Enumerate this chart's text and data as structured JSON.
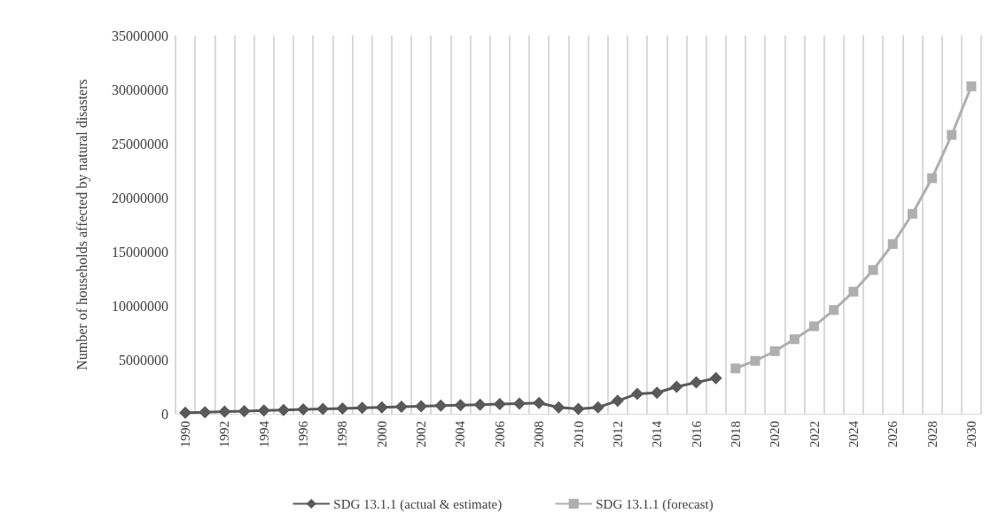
{
  "chart_data": {
    "type": "line",
    "ylabel": "Number of households affected by natural disasters",
    "categories": [
      "1990",
      null,
      "1992",
      null,
      "1994",
      null,
      "1996",
      null,
      "1998",
      null,
      "2000",
      null,
      "2002",
      null,
      "2004",
      null,
      "2006",
      null,
      "2008",
      null,
      "2010",
      null,
      "2012",
      null,
      "2014",
      null,
      "2016",
      null,
      "2018",
      null,
      "2020",
      null,
      "2022",
      null,
      "2024",
      null,
      "2026",
      null,
      "2028",
      null,
      "2030"
    ],
    "series": [
      {
        "name": "SDG 13.1.1 (actual & estimate)",
        "color": "#595959",
        "marker": "diamond",
        "values": [
          100000,
          150000,
          200000,
          250000,
          300000,
          350000,
          400000,
          450000,
          500000,
          550000,
          600000,
          650000,
          700000,
          750000,
          800000,
          850000,
          900000,
          950000,
          1000000,
          600000,
          450000,
          600000,
          1200000,
          1850000,
          1950000,
          2500000,
          2900000,
          3300000,
          null,
          null,
          null,
          null,
          null,
          null,
          null,
          null,
          null,
          null,
          null,
          null,
          null
        ]
      },
      {
        "name": "SDG 13.1.1 (forecast)",
        "color": "#afafaf",
        "marker": "square",
        "values": [
          null,
          null,
          null,
          null,
          null,
          null,
          null,
          null,
          null,
          null,
          null,
          null,
          null,
          null,
          null,
          null,
          null,
          null,
          null,
          null,
          null,
          null,
          null,
          null,
          null,
          null,
          null,
          null,
          4200000,
          4900000,
          5800000,
          6900000,
          8100000,
          9600000,
          11300000,
          13300000,
          15700000,
          18500000,
          21800000,
          25800000,
          30300000
        ]
      }
    ],
    "ylim": [
      0,
      35000000
    ],
    "yticks": [
      0,
      5000000,
      10000000,
      15000000,
      20000000,
      25000000,
      30000000,
      35000000
    ],
    "grid": "x",
    "legend": "bottom",
    "line_style": "solid"
  }
}
